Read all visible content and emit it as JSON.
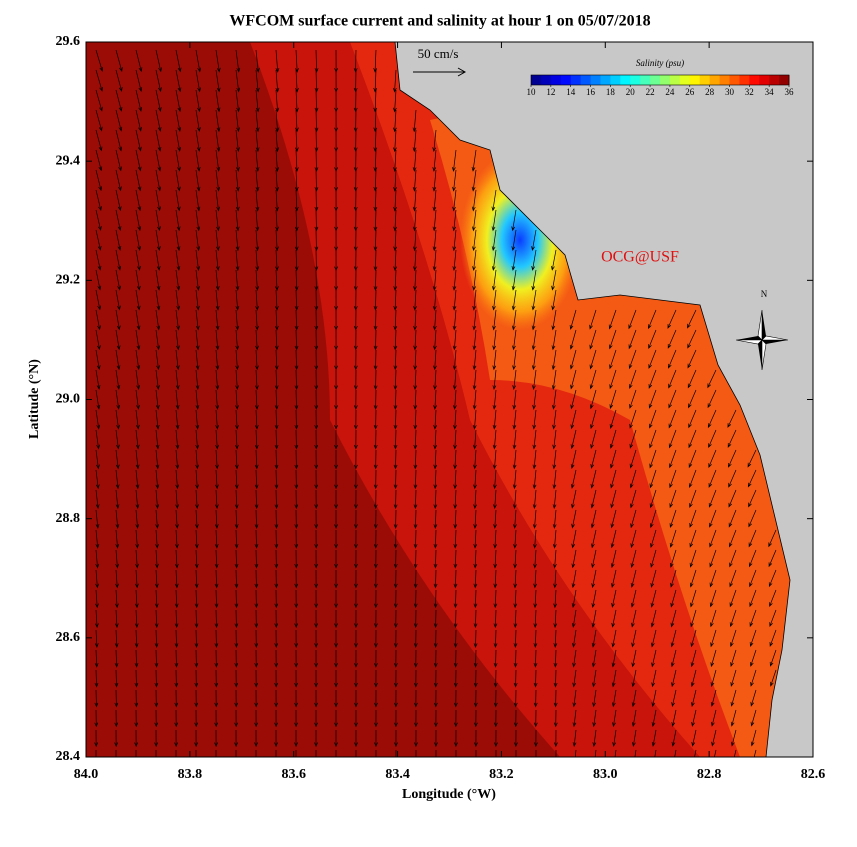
{
  "chart_data": {
    "type": "map",
    "title": "WFCOM surface current and salinity at hour 1 on 05/07/2018",
    "x_label": "Longitude (°W)",
    "y_label": "Latitude (°N)",
    "xlim": [
      84.0,
      82.6
    ],
    "ylim": [
      28.4,
      29.6
    ],
    "xticks": [
      {
        "value": 84.0,
        "label": "84.0"
      },
      {
        "value": 83.8,
        "label": "83.8"
      },
      {
        "value": 83.6,
        "label": "83.6"
      },
      {
        "value": 83.4,
        "label": "83.4"
      },
      {
        "value": 83.2,
        "label": "83.2"
      },
      {
        "value": 83.0,
        "label": "83.0"
      },
      {
        "value": 82.8,
        "label": "82.8"
      },
      {
        "value": 82.6,
        "label": "82.6"
      }
    ],
    "yticks": [
      {
        "value": 28.4,
        "label": "28.4"
      },
      {
        "value": 28.6,
        "label": "28.6"
      },
      {
        "value": 28.8,
        "label": "28.8"
      },
      {
        "value": 29.0,
        "label": "29.0"
      },
      {
        "value": 29.2,
        "label": "29.2"
      },
      {
        "value": 29.4,
        "label": "29.4"
      },
      {
        "value": 29.6,
        "label": "29.6"
      }
    ],
    "colorbar": {
      "title": "Salinity (psu)",
      "lim": [
        10,
        36
      ],
      "ticks": [
        10,
        12,
        14,
        16,
        18,
        20,
        22,
        24,
        26,
        28,
        30,
        32,
        34,
        36
      ]
    },
    "scale_label": "50 cm/s",
    "credit": "OCG@USF",
    "north_label": "N"
  }
}
